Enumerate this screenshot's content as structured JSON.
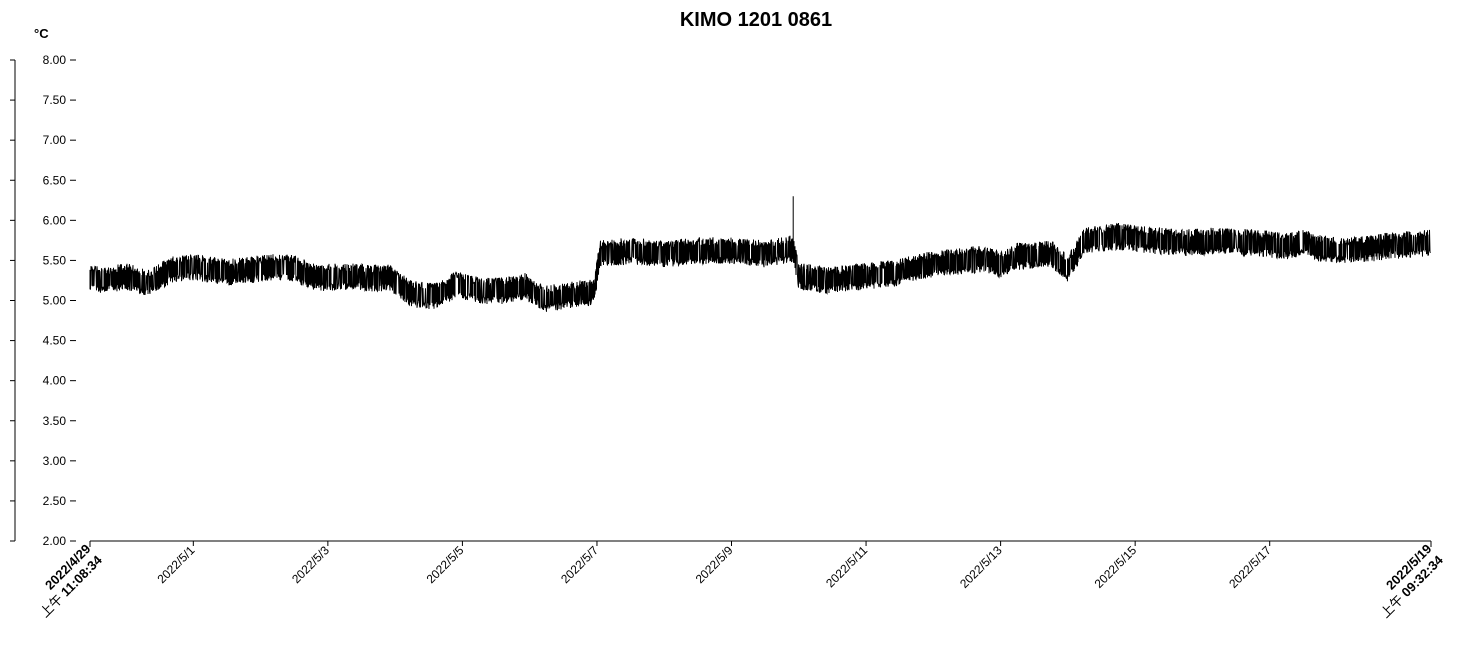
{
  "chart_data": {
    "type": "line",
    "title": "KIMO 1201 0861",
    "ylabel": "°C",
    "ylim": [
      2.0,
      8.0
    ],
    "yticks": [
      "8.00",
      "7.50",
      "7.00",
      "6.50",
      "6.00",
      "5.50",
      "5.00",
      "4.50",
      "4.00",
      "3.50",
      "3.00",
      "2.50",
      "2.00"
    ],
    "xlim": [
      "2022-04-29T11:08:34",
      "2022-05-19T09:32:34"
    ],
    "xticks": [
      "2022/5/1",
      "2022/5/3",
      "2022/5/5",
      "2022/5/7",
      "2022/5/9",
      "2022/5/11",
      "2022/5/13",
      "2022/5/15",
      "2022/5/17"
    ],
    "x_start": {
      "date": "2022/4/29",
      "time_prefix": "上午",
      "time": "11:08:34"
    },
    "x_end": {
      "date": "2022/5/19",
      "time_prefix": "上午",
      "time": "09:32:34"
    },
    "series": [
      {
        "color": "#000000",
        "noise_band": 0.12,
        "points": [
          [
            "2022-04-29T11:08",
            5.28
          ],
          [
            "2022-04-29T16:00",
            5.25
          ],
          [
            "2022-04-30T00:00",
            5.3
          ],
          [
            "2022-04-30T08:00",
            5.22
          ],
          [
            "2022-04-30T16:00",
            5.38
          ],
          [
            "2022-05-01T00:00",
            5.42
          ],
          [
            "2022-05-01T12:00",
            5.35
          ],
          [
            "2022-05-01T20:00",
            5.38
          ],
          [
            "2022-05-02T04:00",
            5.42
          ],
          [
            "2022-05-02T12:00",
            5.4
          ],
          [
            "2022-05-02T20:00",
            5.28
          ],
          [
            "2022-05-03T06:00",
            5.3
          ],
          [
            "2022-05-03T14:00",
            5.28
          ],
          [
            "2022-05-03T22:00",
            5.28
          ],
          [
            "2022-05-04T06:00",
            5.08
          ],
          [
            "2022-05-04T14:00",
            5.05
          ],
          [
            "2022-05-04T22:00",
            5.2
          ],
          [
            "2022-05-05T06:00",
            5.12
          ],
          [
            "2022-05-05T14:00",
            5.12
          ],
          [
            "2022-05-05T22:00",
            5.18
          ],
          [
            "2022-05-06T06:00",
            5.02
          ],
          [
            "2022-05-06T16:00",
            5.08
          ],
          [
            "2022-05-06T23:00",
            5.1
          ],
          [
            "2022-05-07T01:00",
            5.58
          ],
          [
            "2022-05-07T12:00",
            5.62
          ],
          [
            "2022-05-08T00:00",
            5.58
          ],
          [
            "2022-05-08T12:00",
            5.62
          ],
          [
            "2022-05-09T00:00",
            5.62
          ],
          [
            "2022-05-09T12:00",
            5.58
          ],
          [
            "2022-05-09T22:00",
            5.65
          ],
          [
            "2022-05-10T00:00",
            5.3
          ],
          [
            "2022-05-10T12:00",
            5.25
          ],
          [
            "2022-05-11T00:00",
            5.3
          ],
          [
            "2022-05-11T12:00",
            5.35
          ],
          [
            "2022-05-11T18:00",
            5.42
          ],
          [
            "2022-05-12T06:00",
            5.48
          ],
          [
            "2022-05-12T18:00",
            5.52
          ],
          [
            "2022-05-13T00:00",
            5.45
          ],
          [
            "2022-05-13T06:00",
            5.55
          ],
          [
            "2022-05-13T18:00",
            5.58
          ],
          [
            "2022-05-14T00:00",
            5.4
          ],
          [
            "2022-05-14T06:00",
            5.75
          ],
          [
            "2022-05-14T18:00",
            5.8
          ],
          [
            "2022-05-15T06:00",
            5.75
          ],
          [
            "2022-05-15T18:00",
            5.72
          ],
          [
            "2022-05-16T06:00",
            5.75
          ],
          [
            "2022-05-16T18:00",
            5.72
          ],
          [
            "2022-05-17T06:00",
            5.68
          ],
          [
            "2022-05-17T12:00",
            5.72
          ],
          [
            "2022-05-17T18:00",
            5.65
          ],
          [
            "2022-05-18T06:00",
            5.62
          ],
          [
            "2022-05-18T18:00",
            5.68
          ],
          [
            "2022-05-19T09:32",
            5.72
          ]
        ]
      }
    ]
  }
}
